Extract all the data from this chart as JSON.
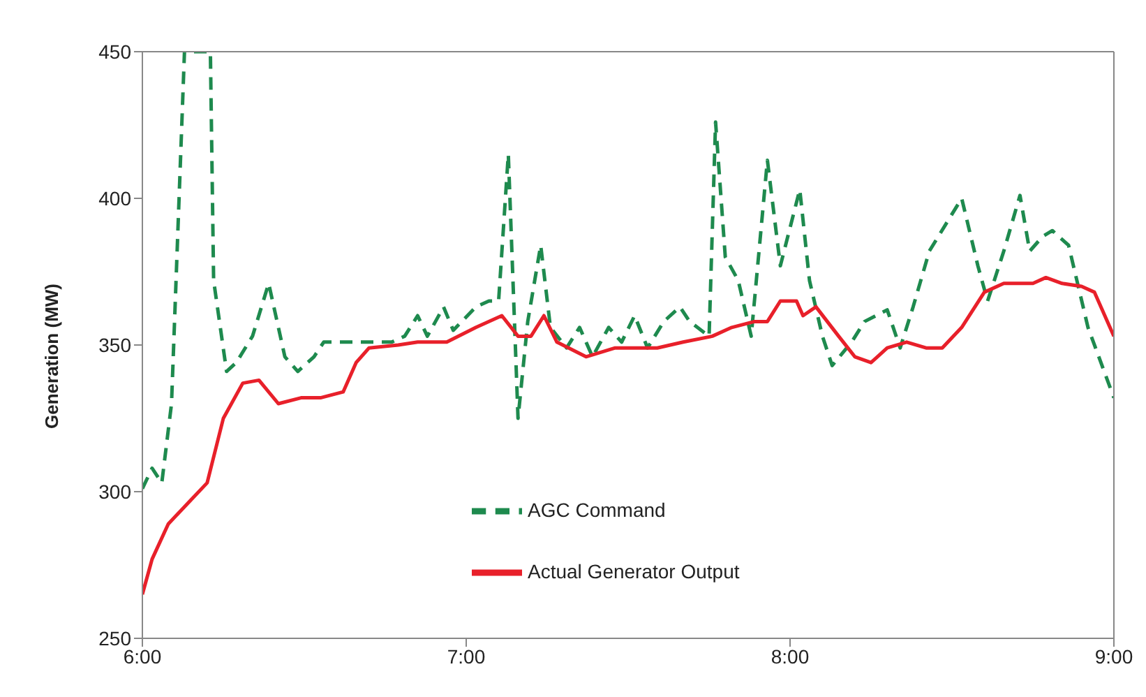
{
  "chart_data": {
    "type": "line",
    "ylabel": "Generation (MW)",
    "xlim": [
      6,
      9
    ],
    "xticks": [
      {
        "value": 6,
        "label": "6:00"
      },
      {
        "value": 7,
        "label": "7:00"
      },
      {
        "value": 8,
        "label": "8:00"
      },
      {
        "value": 9,
        "label": "9:00"
      }
    ],
    "ylim": [
      250,
      450
    ],
    "yticks": [
      250,
      300,
      350,
      400,
      450
    ],
    "legend": "bottom",
    "marker": "none",
    "series": [
      {
        "name": "AGC Command",
        "color": "#1e8a4e",
        "line_style": "dashed",
        "x": [
          6.0,
          6.03,
          6.06,
          6.09,
          6.13,
          6.21,
          6.22,
          6.26,
          6.29,
          6.34,
          6.39,
          6.44,
          6.48,
          6.53,
          6.56,
          6.77,
          6.81,
          6.85,
          6.88,
          6.93,
          6.96,
          7.03,
          7.07,
          7.1,
          7.13,
          7.16,
          7.19,
          7.23,
          7.26,
          7.31,
          7.35,
          7.39,
          7.44,
          7.48,
          7.52,
          7.56,
          7.61,
          7.66,
          7.69,
          7.75,
          7.77,
          7.8,
          7.84,
          7.88,
          7.93,
          7.97,
          8.03,
          8.06,
          8.1,
          8.13,
          8.19,
          8.23,
          8.3,
          8.34,
          8.38,
          8.43,
          8.53,
          8.58,
          8.61,
          8.66,
          8.71,
          8.74,
          8.78,
          8.81,
          8.86,
          8.92,
          9.0
        ],
        "values": [
          301,
          308,
          303,
          330,
          450,
          450,
          372,
          341,
          344,
          353,
          371,
          346,
          341,
          346,
          351,
          351,
          353,
          360,
          353,
          363,
          355,
          363,
          365,
          365,
          415,
          325,
          358,
          384,
          356,
          349,
          356,
          346,
          356,
          351,
          360,
          349,
          358,
          363,
          358,
          353,
          426,
          380,
          372,
          353,
          413,
          377,
          403,
          372,
          353,
          343,
          351,
          358,
          362,
          349,
          363,
          382,
          400,
          377,
          365,
          382,
          401,
          382,
          387,
          389,
          384,
          356,
          332
        ]
      },
      {
        "name": "Actual Generator Output",
        "color": "#e8202a",
        "line_style": "solid",
        "x": [
          6.0,
          6.03,
          6.08,
          6.14,
          6.2,
          6.25,
          6.31,
          6.36,
          6.42,
          6.49,
          6.55,
          6.62,
          6.66,
          6.7,
          6.79,
          6.85,
          6.94,
          7.03,
          7.11,
          7.16,
          7.2,
          7.24,
          7.28,
          7.37,
          7.46,
          7.59,
          7.67,
          7.76,
          7.82,
          7.89,
          7.93,
          7.97,
          8.02,
          8.04,
          8.08,
          8.15,
          8.2,
          8.25,
          8.3,
          8.36,
          8.42,
          8.47,
          8.53,
          8.6,
          8.66,
          8.75,
          8.79,
          8.84,
          8.9,
          8.94,
          9.0
        ],
        "values": [
          265,
          277,
          289,
          296,
          303,
          325,
          337,
          338,
          330,
          332,
          332,
          334,
          344,
          349,
          350,
          351,
          351,
          356,
          360,
          353,
          353,
          360,
          351,
          346,
          349,
          349,
          351,
          353,
          356,
          358,
          358,
          365,
          365,
          360,
          363,
          353,
          346,
          344,
          349,
          351,
          349,
          349,
          356,
          368,
          371,
          371,
          373,
          371,
          370,
          368,
          353
        ]
      }
    ]
  }
}
